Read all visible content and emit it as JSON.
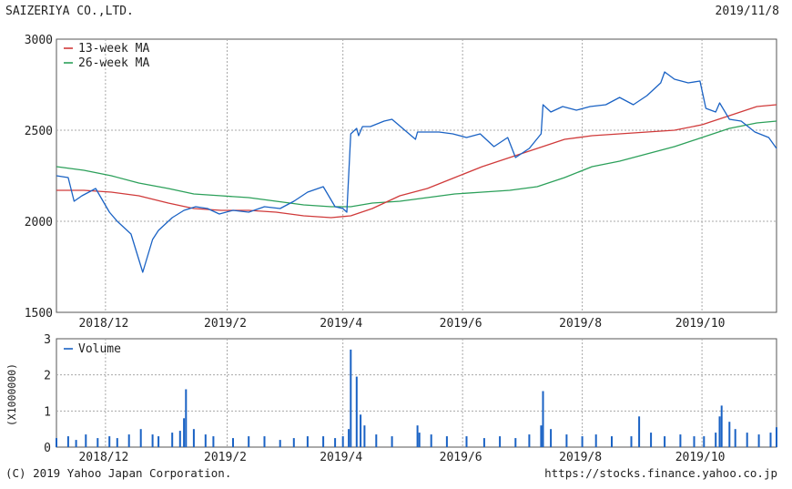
{
  "header": {
    "company": "SAIZERIYA CO.,LTD.",
    "date": "2019/11/8"
  },
  "footer": {
    "copyright": "(C) 2019 Yahoo Japan Corporation.",
    "url": "https://stocks.finance.yahoo.co.jp"
  },
  "colors": {
    "price": "#1a62c4",
    "ma13": "#d03a3a",
    "ma26": "#2ca05a",
    "volume": "#1a62c4",
    "grid": "#a8a8a8"
  },
  "chart_data": [
    {
      "type": "line",
      "panel": "price",
      "ylim": [
        1500,
        3000
      ],
      "yticks": [
        1500,
        2000,
        2500,
        3000
      ],
      "xlim": [
        "2018-11-06",
        "2019-11-08"
      ],
      "xticks": [
        {
          "label": "2018/12",
          "date": "2018-12-01"
        },
        {
          "label": "2019/2",
          "date": "2019-02-01"
        },
        {
          "label": "2019/4",
          "date": "2019-04-01"
        },
        {
          "label": "2019/6",
          "date": "2019-06-01"
        },
        {
          "label": "2019/8",
          "date": "2019-08-01"
        },
        {
          "label": "2019/10",
          "date": "2019-10-01"
        }
      ],
      "grid": true,
      "legend": "top-left",
      "series": [
        {
          "name": "13-week MA",
          "key": "ma13",
          "x": [
            "2018-11-06",
            "2018-11-20",
            "2018-12-04",
            "2018-12-18",
            "2019-01-02",
            "2019-01-15",
            "2019-01-29",
            "2019-02-12",
            "2019-02-26",
            "2019-03-12",
            "2019-03-26",
            "2019-04-05",
            "2019-04-16",
            "2019-04-30",
            "2019-05-14",
            "2019-05-28",
            "2019-06-11",
            "2019-06-25",
            "2019-07-09",
            "2019-07-23",
            "2019-08-06",
            "2019-08-20",
            "2019-09-03",
            "2019-09-17",
            "2019-10-01",
            "2019-10-15",
            "2019-10-29",
            "2019-11-08"
          ],
          "values": [
            2170,
            2170,
            2160,
            2140,
            2100,
            2070,
            2060,
            2060,
            2050,
            2030,
            2020,
            2030,
            2070,
            2140,
            2180,
            2240,
            2300,
            2350,
            2400,
            2450,
            2470,
            2480,
            2490,
            2500,
            2530,
            2580,
            2630,
            2640
          ]
        },
        {
          "name": "26-week MA",
          "key": "ma26",
          "x": [
            "2018-11-06",
            "2018-11-20",
            "2018-12-04",
            "2018-12-18",
            "2019-01-02",
            "2019-01-15",
            "2019-01-29",
            "2019-02-12",
            "2019-02-26",
            "2019-03-12",
            "2019-03-26",
            "2019-04-05",
            "2019-04-16",
            "2019-04-30",
            "2019-05-14",
            "2019-05-28",
            "2019-06-11",
            "2019-06-25",
            "2019-07-09",
            "2019-07-23",
            "2019-08-06",
            "2019-08-20",
            "2019-09-03",
            "2019-09-17",
            "2019-10-01",
            "2019-10-15",
            "2019-10-29",
            "2019-11-08"
          ],
          "values": [
            2300,
            2280,
            2250,
            2210,
            2180,
            2150,
            2140,
            2130,
            2110,
            2090,
            2080,
            2080,
            2100,
            2110,
            2130,
            2150,
            2160,
            2170,
            2190,
            2240,
            2300,
            2330,
            2370,
            2410,
            2460,
            2510,
            2540,
            2550
          ]
        },
        {
          "key": "price",
          "x": [
            "2018-11-06",
            "2018-11-12",
            "2018-11-15",
            "2018-11-19",
            "2018-11-26",
            "2018-12-03",
            "2018-12-07",
            "2018-12-14",
            "2018-12-20",
            "2018-12-25",
            "2018-12-28",
            "2019-01-04",
            "2019-01-10",
            "2019-01-16",
            "2019-01-22",
            "2019-01-28",
            "2019-02-04",
            "2019-02-12",
            "2019-02-20",
            "2019-02-28",
            "2019-03-07",
            "2019-03-14",
            "2019-03-22",
            "2019-03-28",
            "2019-04-01",
            "2019-04-03",
            "2019-04-05",
            "2019-04-08",
            "2019-04-09",
            "2019-04-11",
            "2019-04-15",
            "2019-04-22",
            "2019-04-26",
            "2019-05-08",
            "2019-05-09",
            "2019-05-13",
            "2019-05-20",
            "2019-05-27",
            "2019-06-03",
            "2019-06-10",
            "2019-06-17",
            "2019-06-24",
            "2019-06-28",
            "2019-07-05",
            "2019-07-11",
            "2019-07-12",
            "2019-07-16",
            "2019-07-22",
            "2019-07-29",
            "2019-08-05",
            "2019-08-13",
            "2019-08-20",
            "2019-08-27",
            "2019-09-03",
            "2019-09-10",
            "2019-09-12",
            "2019-09-17",
            "2019-09-24",
            "2019-09-30",
            "2019-10-03",
            "2019-10-08",
            "2019-10-10",
            "2019-10-15",
            "2019-10-21",
            "2019-10-28",
            "2019-11-04",
            "2019-11-08"
          ],
          "values": [
            2250,
            2240,
            2110,
            2140,
            2180,
            2050,
            2000,
            1930,
            1720,
            1900,
            1950,
            2020,
            2060,
            2080,
            2070,
            2040,
            2060,
            2050,
            2080,
            2070,
            2110,
            2160,
            2190,
            2080,
            2070,
            2050,
            2480,
            2510,
            2470,
            2520,
            2520,
            2550,
            2560,
            2450,
            2490,
            2490,
            2490,
            2480,
            2460,
            2480,
            2410,
            2460,
            2350,
            2400,
            2480,
            2640,
            2600,
            2630,
            2610,
            2630,
            2640,
            2680,
            2640,
            2690,
            2760,
            2820,
            2780,
            2760,
            2770,
            2620,
            2600,
            2650,
            2560,
            2550,
            2490,
            2460,
            2400
          ]
        }
      ]
    },
    {
      "type": "bar",
      "panel": "volume",
      "ylabel": "(X1000000)",
      "ylim": [
        0,
        3
      ],
      "yticks": [
        0,
        1,
        2,
        3
      ],
      "legend": "top-left",
      "series": [
        {
          "name": "Volume",
          "key": "volume",
          "x": [
            "2018-11-06",
            "2018-11-12",
            "2018-11-16",
            "2018-11-21",
            "2018-11-27",
            "2018-12-03",
            "2018-12-07",
            "2018-12-13",
            "2018-12-19",
            "2018-12-25",
            "2018-12-28",
            "2019-01-04",
            "2019-01-08",
            "2019-01-10",
            "2019-01-11",
            "2019-01-15",
            "2019-01-21",
            "2019-01-25",
            "2019-02-04",
            "2019-02-12",
            "2019-02-20",
            "2019-02-28",
            "2019-03-07",
            "2019-03-14",
            "2019-03-22",
            "2019-03-28",
            "2019-04-01",
            "2019-04-04",
            "2019-04-05",
            "2019-04-08",
            "2019-04-10",
            "2019-04-12",
            "2019-04-18",
            "2019-04-26",
            "2019-05-09",
            "2019-05-10",
            "2019-05-16",
            "2019-05-24",
            "2019-06-03",
            "2019-06-12",
            "2019-06-20",
            "2019-06-28",
            "2019-07-05",
            "2019-07-11",
            "2019-07-12",
            "2019-07-16",
            "2019-07-24",
            "2019-08-01",
            "2019-08-08",
            "2019-08-16",
            "2019-08-26",
            "2019-08-30",
            "2019-09-05",
            "2019-09-12",
            "2019-09-20",
            "2019-09-27",
            "2019-10-02",
            "2019-10-08",
            "2019-10-10",
            "2019-10-11",
            "2019-10-15",
            "2019-10-18",
            "2019-10-24",
            "2019-10-30",
            "2019-11-05",
            "2019-11-08"
          ],
          "values": [
            0.25,
            0.3,
            0.2,
            0.35,
            0.25,
            0.3,
            0.25,
            0.35,
            0.5,
            0.35,
            0.3,
            0.4,
            0.45,
            0.8,
            1.6,
            0.5,
            0.35,
            0.3,
            0.25,
            0.3,
            0.3,
            0.2,
            0.25,
            0.3,
            0.3,
            0.25,
            0.3,
            0.5,
            2.7,
            1.95,
            0.9,
            0.6,
            0.35,
            0.3,
            0.6,
            0.4,
            0.35,
            0.3,
            0.3,
            0.25,
            0.3,
            0.25,
            0.35,
            0.6,
            1.55,
            0.5,
            0.35,
            0.3,
            0.35,
            0.3,
            0.3,
            0.85,
            0.4,
            0.3,
            0.35,
            0.3,
            0.3,
            0.4,
            0.85,
            1.15,
            0.7,
            0.5,
            0.4,
            0.35,
            0.4,
            0.55
          ]
        }
      ]
    }
  ]
}
